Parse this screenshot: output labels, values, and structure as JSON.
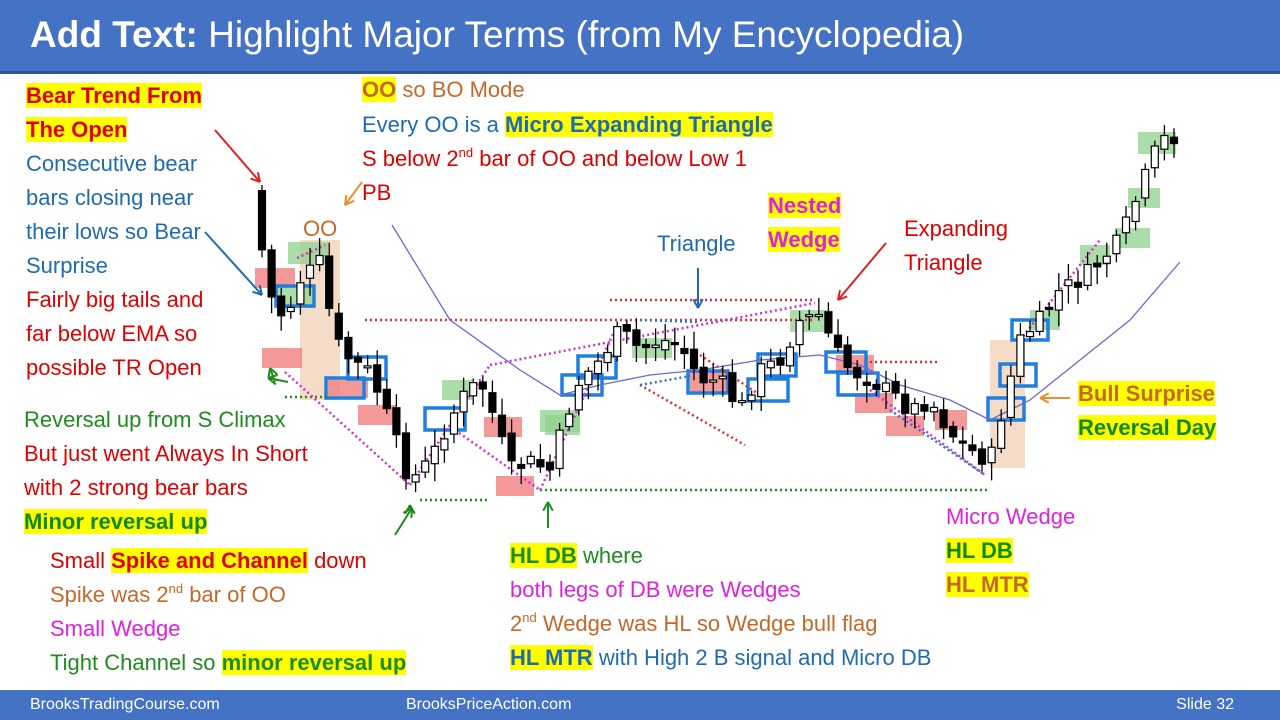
{
  "header": {
    "title_bold": "Add Text:",
    "title_rest": " Highlight Major Terms (from My Encyclopedia)"
  },
  "footer": {
    "left": "BrooksTradingCourse.com",
    "center": "BrooksPriceAction.com",
    "slide": "Slide  32"
  },
  "colors": {
    "header_bg": "#4472C4",
    "highlight": "#FFFF00",
    "red": "#E00000",
    "blue": "#1F6BB0",
    "green": "#1E8C1E",
    "magenta": "#E020E0",
    "orange": "#C5692A",
    "bull_box": "#8FD18F",
    "bear_box": "#F08080",
    "signal_box": "#1E7FE0"
  },
  "left": {
    "bear_trend_1": "Bear Trend From",
    "bear_trend_2": "The Open",
    "blue_1": "Consecutive bear",
    "blue_2": "bars closing near",
    "blue_3": "their lows so Bear",
    "blue_4": "Surprise",
    "red_1": "Fairly big tails and",
    "red_2": "far below EMA so",
    "red_3": "possible TR Open",
    "reversal": "Reversal up from S Climax",
    "ai_1": "But just went Always In Short",
    "ai_2": "with 2 strong bear bars",
    "minor": "Minor reversal up",
    "spike_pre": "Small ",
    "spike_hl": "Spike and Channel",
    "spike_post": " down",
    "spike2_pre": "Spike was 2",
    "spike2_sup": "nd",
    "spike2_post": " bar of OO",
    "wedge": "Small Wedge",
    "tight_pre": "Tight Channel so ",
    "tight_hl": "minor reversal up"
  },
  "top": {
    "oo_hl": "OO",
    "oo_rest": " so BO Mode",
    "every_pre": "Every OO is a ",
    "every_hl": "Micro Expanding Triangle",
    "s_pre": "S below 2",
    "s_sup": "nd",
    "s_post": " bar of OO and below Low 1",
    "pb": "PB"
  },
  "chart_labels": {
    "oo": "OO",
    "triangle": "Triangle",
    "nested_1": "Nested",
    "nested_2": "Wedge",
    "exp_1": "Expanding",
    "exp_2": "Triangle",
    "bull_surprise": "Bull Surprise",
    "reversal_day": "Reversal Day"
  },
  "bottom_mid": {
    "hldb_hl": "HL DB",
    "hldb_rest": " where",
    "legs": "both legs of DB were Wedges",
    "w2_pre": "2",
    "w2_sup": "nd",
    "w2_post": " Wedge was HL so Wedge bull flag",
    "mtr_hl": "HL MTR",
    "mtr_rest": " with High 2 B signal and Micro DB"
  },
  "bottom_right": {
    "micro": "Micro Wedge",
    "hldb": "HL DB",
    "hlmtr": "HL MTR"
  }
}
